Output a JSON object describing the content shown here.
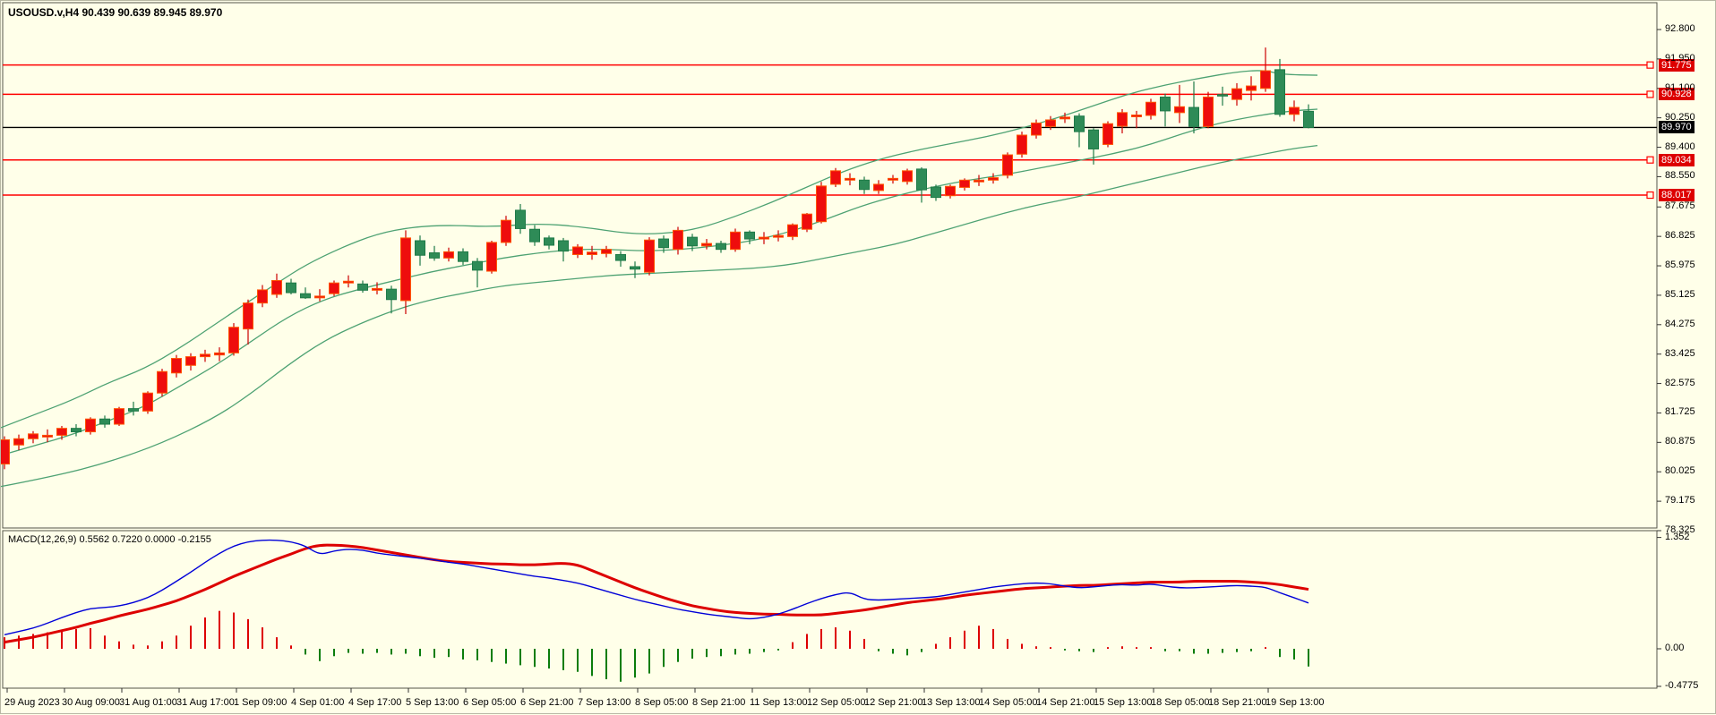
{
  "title": "USOUSD.v,H4  90.439 90.639 89.945 89.970",
  "colors": {
    "background": "#FFFFE9",
    "bull_fill": "#EE0D0D",
    "bull_border": "#FF5500",
    "bull_wick": "#CC0000",
    "bear_fill": "#2E8B57",
    "bear_border": "#1F7A48",
    "bear_wick": "#1F7A48",
    "band": "#4EA273",
    "hline": "#FF0000",
    "current_line": "#000000",
    "macd_line": "#0000D8",
    "signal_line": "#DD0000",
    "hist_pos": "#DD0000",
    "hist_neg": "#0B7D0B",
    "axis": "#333333"
  },
  "chart_data": {
    "type": "candlestick",
    "symbol": "USOUSD.v",
    "timeframe": "H4",
    "last_ohlc": {
      "open": 90.439,
      "high": 90.639,
      "low": 89.945,
      "close": 89.97
    },
    "ylim": [
      78.325,
      92.88
    ],
    "grid": false,
    "price_axis_ticks": [
      "92.800",
      "91.950",
      "91.100",
      "90.250",
      "89.400",
      "88.550",
      "87.675",
      "86.825",
      "85.975",
      "85.125",
      "84.275",
      "83.425",
      "82.575",
      "81.725",
      "80.875",
      "80.025",
      "79.175",
      "78.325"
    ],
    "horizontal_levels": [
      {
        "price": 91.775,
        "label": "91.775"
      },
      {
        "price": 90.928,
        "label": "90.928"
      },
      {
        "price": 89.034,
        "label": "89.034"
      },
      {
        "price": 88.017,
        "label": "88.017"
      }
    ],
    "current_price": {
      "price": 89.97,
      "label": "89.970"
    },
    "bars_per_label": 4,
    "time_labels": [
      "29 Aug 2023",
      "30 Aug 09:00",
      "31 Aug 01:00",
      "31 Aug 17:00",
      "1 Sep 09:00",
      "4 Sep 01:00",
      "4 Sep 17:00",
      "5 Sep 13:00",
      "6 Sep 05:00",
      "6 Sep 21:00",
      "7 Sep 13:00",
      "8 Sep 05:00",
      "8 Sep 21:00",
      "11 Sep 13:00",
      "12 Sep 05:00",
      "12 Sep 21:00",
      "13 Sep 13:00",
      "14 Sep 05:00",
      "14 Sep 21:00",
      "15 Sep 13:00",
      "18 Sep 05:00",
      "18 Sep 21:00",
      "19 Sep 13:00"
    ],
    "candles_ohlc": [
      [
        80.25,
        81.05,
        80.1,
        80.95
      ],
      [
        80.8,
        81.1,
        80.65,
        80.98
      ],
      [
        80.98,
        81.2,
        80.85,
        81.12
      ],
      [
        81.03,
        81.25,
        80.88,
        81.08
      ],
      [
        81.08,
        81.35,
        80.95,
        81.28
      ],
      [
        81.28,
        81.4,
        81.05,
        81.18
      ],
      [
        81.18,
        81.6,
        81.1,
        81.55
      ],
      [
        81.55,
        81.65,
        81.3,
        81.4
      ],
      [
        81.4,
        81.9,
        81.35,
        81.85
      ],
      [
        81.85,
        82.05,
        81.65,
        81.78
      ],
      [
        81.78,
        82.35,
        81.7,
        82.3
      ],
      [
        82.3,
        83.0,
        82.2,
        82.92
      ],
      [
        82.88,
        83.4,
        82.75,
        83.3
      ],
      [
        83.1,
        83.45,
        82.95,
        83.35
      ],
      [
        83.35,
        83.55,
        83.2,
        83.42
      ],
      [
        83.4,
        83.62,
        83.22,
        83.46
      ],
      [
        83.46,
        84.32,
        83.38,
        84.2
      ],
      [
        84.15,
        85.0,
        83.7,
        84.9
      ],
      [
        84.9,
        85.42,
        84.78,
        85.28
      ],
      [
        85.15,
        85.75,
        85.05,
        85.55
      ],
      [
        85.48,
        85.6,
        85.15,
        85.2
      ],
      [
        85.17,
        85.35,
        85.02,
        85.05
      ],
      [
        85.05,
        85.3,
        84.95,
        85.1
      ],
      [
        85.17,
        85.55,
        85.1,
        85.48
      ],
      [
        85.48,
        85.7,
        85.35,
        85.53
      ],
      [
        85.45,
        85.55,
        85.2,
        85.27
      ],
      [
        85.27,
        85.5,
        85.15,
        85.32
      ],
      [
        85.3,
        85.4,
        84.6,
        85.0
      ],
      [
        84.97,
        87.0,
        84.58,
        86.78
      ],
      [
        86.7,
        86.85,
        85.98,
        86.28
      ],
      [
        86.35,
        86.55,
        86.12,
        86.2
      ],
      [
        86.2,
        86.5,
        86.1,
        86.38
      ],
      [
        86.38,
        86.48,
        86.0,
        86.1
      ],
      [
        86.1,
        86.2,
        85.35,
        85.85
      ],
      [
        85.82,
        86.7,
        85.75,
        86.65
      ],
      [
        86.65,
        87.42,
        86.55,
        87.29
      ],
      [
        87.58,
        87.76,
        86.9,
        87.05
      ],
      [
        87.03,
        87.15,
        86.55,
        86.67
      ],
      [
        86.78,
        86.85,
        86.45,
        86.57
      ],
      [
        86.7,
        86.78,
        86.1,
        86.4
      ],
      [
        86.3,
        86.6,
        86.2,
        86.52
      ],
      [
        86.3,
        86.55,
        86.15,
        86.37
      ],
      [
        86.33,
        86.55,
        86.22,
        86.45
      ],
      [
        86.3,
        86.4,
        85.95,
        86.13
      ],
      [
        85.95,
        86.1,
        85.62,
        85.88
      ],
      [
        85.79,
        86.8,
        85.7,
        86.72
      ],
      [
        86.75,
        86.85,
        86.35,
        86.5
      ],
      [
        86.45,
        87.1,
        86.3,
        87.0
      ],
      [
        86.8,
        86.9,
        86.4,
        86.55
      ],
      [
        86.55,
        86.75,
        86.45,
        86.62
      ],
      [
        86.62,
        86.7,
        86.35,
        86.45
      ],
      [
        86.45,
        87.05,
        86.38,
        86.95
      ],
      [
        86.95,
        87.0,
        86.6,
        86.75
      ],
      [
        86.75,
        86.95,
        86.6,
        86.8
      ],
      [
        86.8,
        87.0,
        86.68,
        86.85
      ],
      [
        86.82,
        87.2,
        86.72,
        87.16
      ],
      [
        87.03,
        87.5,
        86.95,
        87.47
      ],
      [
        87.25,
        88.4,
        87.2,
        88.28
      ],
      [
        88.33,
        88.8,
        88.25,
        88.72
      ],
      [
        88.45,
        88.65,
        88.3,
        88.5
      ],
      [
        88.45,
        88.55,
        88.05,
        88.18
      ],
      [
        88.15,
        88.45,
        88.05,
        88.33
      ],
      [
        88.45,
        88.6,
        88.35,
        88.5
      ],
      [
        88.41,
        88.78,
        88.32,
        88.72
      ],
      [
        88.77,
        88.82,
        87.8,
        88.17
      ],
      [
        88.25,
        88.32,
        87.85,
        87.95
      ],
      [
        88.0,
        88.32,
        87.92,
        88.27
      ],
      [
        88.24,
        88.5,
        88.15,
        88.45
      ],
      [
        88.4,
        88.6,
        88.28,
        88.45
      ],
      [
        88.45,
        88.65,
        88.35,
        88.52
      ],
      [
        88.59,
        89.25,
        88.5,
        89.18
      ],
      [
        89.2,
        89.85,
        89.1,
        89.75
      ],
      [
        89.75,
        90.2,
        89.65,
        90.1
      ],
      [
        90.0,
        90.3,
        89.9,
        90.19
      ],
      [
        90.22,
        90.4,
        90.1,
        90.27
      ],
      [
        90.3,
        90.38,
        89.4,
        89.85
      ],
      [
        89.9,
        89.95,
        88.9,
        89.35
      ],
      [
        89.48,
        90.15,
        89.4,
        90.08
      ],
      [
        90.01,
        90.5,
        89.8,
        90.4
      ],
      [
        90.28,
        90.45,
        89.95,
        90.33
      ],
      [
        90.32,
        90.8,
        90.2,
        90.7
      ],
      [
        90.85,
        90.95,
        90.0,
        90.45
      ],
      [
        90.4,
        91.2,
        90.1,
        90.57
      ],
      [
        90.55,
        91.3,
        89.8,
        90.0
      ],
      [
        90.0,
        91.0,
        89.95,
        90.85
      ],
      [
        90.92,
        91.15,
        90.6,
        90.88
      ],
      [
        90.78,
        91.25,
        90.6,
        91.09
      ],
      [
        91.04,
        91.45,
        90.75,
        91.17
      ],
      [
        91.1,
        92.28,
        91.0,
        91.61
      ],
      [
        91.64,
        91.95,
        90.28,
        90.35
      ],
      [
        90.35,
        90.75,
        90.15,
        90.55
      ],
      [
        90.439,
        90.639,
        89.945,
        89.97
      ]
    ],
    "bollinger": {
      "upper": [
        [
          0,
          81.3
        ],
        [
          40,
          81.7
        ],
        [
          80,
          82.1
        ],
        [
          120,
          82.6
        ],
        [
          160,
          83.0
        ],
        [
          200,
          83.6
        ],
        [
          240,
          84.3
        ],
        [
          280,
          85.0
        ],
        [
          310,
          85.5
        ],
        [
          340,
          86.0
        ],
        [
          380,
          86.5
        ],
        [
          420,
          86.9
        ],
        [
          460,
          87.1
        ],
        [
          500,
          87.15
        ],
        [
          550,
          87.1
        ],
        [
          600,
          87.2
        ],
        [
          650,
          87.1
        ],
        [
          700,
          86.9
        ],
        [
          740,
          86.9
        ],
        [
          780,
          87.05
        ],
        [
          820,
          87.4
        ],
        [
          860,
          87.8
        ],
        [
          900,
          88.25
        ],
        [
          940,
          88.7
        ],
        [
          980,
          89.05
        ],
        [
          1020,
          89.3
        ],
        [
          1060,
          89.5
        ],
        [
          1100,
          89.7
        ],
        [
          1140,
          89.95
        ],
        [
          1180,
          90.25
        ],
        [
          1220,
          90.6
        ],
        [
          1260,
          90.95
        ],
        [
          1300,
          91.2
        ],
        [
          1340,
          91.4
        ],
        [
          1380,
          91.58
        ],
        [
          1410,
          91.63
        ],
        [
          1430,
          91.5
        ],
        [
          1470,
          91.48
        ]
      ],
      "middle": [
        [
          0,
          80.5
        ],
        [
          40,
          80.8
        ],
        [
          80,
          81.1
        ],
        [
          120,
          81.5
        ],
        [
          160,
          81.9
        ],
        [
          200,
          82.5
        ],
        [
          240,
          83.1
        ],
        [
          280,
          83.8
        ],
        [
          320,
          84.5
        ],
        [
          360,
          85.0
        ],
        [
          400,
          85.3
        ],
        [
          440,
          85.55
        ],
        [
          480,
          85.8
        ],
        [
          520,
          86.0
        ],
        [
          560,
          86.2
        ],
        [
          600,
          86.35
        ],
        [
          640,
          86.45
        ],
        [
          680,
          86.45
        ],
        [
          720,
          86.4
        ],
        [
          760,
          86.45
        ],
        [
          800,
          86.55
        ],
        [
          840,
          86.7
        ],
        [
          880,
          86.95
        ],
        [
          920,
          87.3
        ],
        [
          960,
          87.7
        ],
        [
          1000,
          88.0
        ],
        [
          1040,
          88.25
        ],
        [
          1080,
          88.45
        ],
        [
          1120,
          88.6
        ],
        [
          1160,
          88.8
        ],
        [
          1200,
          89.0
        ],
        [
          1240,
          89.2
        ],
        [
          1280,
          89.45
        ],
        [
          1320,
          89.8
        ],
        [
          1360,
          90.1
        ],
        [
          1400,
          90.3
        ],
        [
          1440,
          90.45
        ],
        [
          1470,
          90.5
        ]
      ],
      "lower": [
        [
          0,
          79.6
        ],
        [
          60,
          79.9
        ],
        [
          120,
          80.3
        ],
        [
          180,
          80.85
        ],
        [
          240,
          81.6
        ],
        [
          280,
          82.3
        ],
        [
          320,
          83.1
        ],
        [
          360,
          83.8
        ],
        [
          400,
          84.3
        ],
        [
          440,
          84.7
        ],
        [
          480,
          85.0
        ],
        [
          520,
          85.2
        ],
        [
          560,
          85.4
        ],
        [
          600,
          85.5
        ],
        [
          640,
          85.6
        ],
        [
          680,
          85.7
        ],
        [
          720,
          85.75
        ],
        [
          760,
          85.8
        ],
        [
          800,
          85.85
        ],
        [
          840,
          85.9
        ],
        [
          880,
          86.0
        ],
        [
          920,
          86.2
        ],
        [
          960,
          86.4
        ],
        [
          1000,
          86.6
        ],
        [
          1040,
          86.9
        ],
        [
          1080,
          87.2
        ],
        [
          1120,
          87.5
        ],
        [
          1160,
          87.75
        ],
        [
          1200,
          87.95
        ],
        [
          1240,
          88.2
        ],
        [
          1280,
          88.45
        ],
        [
          1320,
          88.7
        ],
        [
          1360,
          88.95
        ],
        [
          1400,
          89.15
        ],
        [
          1440,
          89.35
        ],
        [
          1470,
          89.45
        ]
      ]
    },
    "macd": {
      "label": "MACD(12,26,9) 0.5562 0.7220 0.0000 -0.2155",
      "params": "12,26,9",
      "values_text": [
        "0.5562",
        "0.7220",
        "0.0000",
        "-0.2155"
      ],
      "axis_ticks": [
        "1.352",
        "0.00",
        "-0.4775"
      ],
      "histogram": [
        0.14,
        0.16,
        0.18,
        0.2,
        0.22,
        0.24,
        0.25,
        0.16,
        0.09,
        0.05,
        0.04,
        0.09,
        0.16,
        0.28,
        0.38,
        0.46,
        0.44,
        0.36,
        0.26,
        0.14,
        0.04,
        -0.07,
        -0.15,
        -0.09,
        -0.05,
        -0.06,
        -0.05,
        -0.07,
        -0.06,
        -0.09,
        -0.11,
        -0.1,
        -0.13,
        -0.14,
        -0.16,
        -0.18,
        -0.2,
        -0.22,
        -0.24,
        -0.26,
        -0.28,
        -0.33,
        -0.37,
        -0.4,
        -0.35,
        -0.3,
        -0.22,
        -0.16,
        -0.12,
        -0.1,
        -0.09,
        -0.07,
        -0.06,
        -0.04,
        -0.02,
        0.08,
        0.18,
        0.24,
        0.26,
        0.22,
        0.12,
        -0.03,
        -0.06,
        -0.08,
        -0.04,
        0.06,
        0.14,
        0.22,
        0.28,
        0.24,
        0.12,
        0.06,
        0.03,
        0.02,
        -0.02,
        -0.03,
        -0.04,
        0.02,
        0.03,
        0.02,
        0.02,
        -0.03,
        -0.03,
        -0.06,
        -0.06,
        -0.05,
        -0.04,
        -0.03,
        0.02,
        -0.1,
        -0.13,
        -0.2155
      ],
      "macd_line": [
        0.17,
        0.21,
        0.25,
        0.31,
        0.38,
        0.44,
        0.49,
        0.5,
        0.52,
        0.56,
        0.62,
        0.71,
        0.82,
        0.93,
        1.05,
        1.16,
        1.25,
        1.3,
        1.32,
        1.32,
        1.3,
        1.25,
        1.14,
        1.19,
        1.21,
        1.2,
        1.16,
        1.14,
        1.12,
        1.1,
        1.08,
        1.05,
        1.03,
        1.0,
        0.97,
        0.94,
        0.91,
        0.88,
        0.86,
        0.83,
        0.8,
        0.75,
        0.7,
        0.65,
        0.6,
        0.56,
        0.52,
        0.48,
        0.45,
        0.42,
        0.4,
        0.38,
        0.36,
        0.38,
        0.42,
        0.48,
        0.55,
        0.61,
        0.66,
        0.69,
        0.6,
        0.59,
        0.6,
        0.61,
        0.62,
        0.63,
        0.66,
        0.69,
        0.72,
        0.75,
        0.77,
        0.79,
        0.8,
        0.79,
        0.76,
        0.74,
        0.75,
        0.77,
        0.78,
        0.77,
        0.79,
        0.76,
        0.74,
        0.74,
        0.75,
        0.76,
        0.77,
        0.76,
        0.75,
        0.68,
        0.62,
        0.5562
      ],
      "signal_line": [
        0.08,
        0.11,
        0.14,
        0.18,
        0.22,
        0.26,
        0.31,
        0.35,
        0.4,
        0.44,
        0.48,
        0.53,
        0.58,
        0.65,
        0.72,
        0.8,
        0.88,
        0.95,
        1.02,
        1.09,
        1.15,
        1.22,
        1.26,
        1.26,
        1.25,
        1.23,
        1.2,
        1.17,
        1.14,
        1.11,
        1.08,
        1.06,
        1.05,
        1.04,
        1.03,
        1.03,
        1.02,
        1.02,
        1.03,
        1.04,
        1.02,
        0.95,
        0.88,
        0.81,
        0.74,
        0.68,
        0.62,
        0.57,
        0.52,
        0.49,
        0.46,
        0.44,
        0.43,
        0.42,
        0.42,
        0.41,
        0.41,
        0.41,
        0.43,
        0.45,
        0.47,
        0.5,
        0.53,
        0.56,
        0.58,
        0.6,
        0.62,
        0.65,
        0.67,
        0.69,
        0.71,
        0.73,
        0.74,
        0.75,
        0.76,
        0.77,
        0.77,
        0.78,
        0.79,
        0.8,
        0.81,
        0.81,
        0.81,
        0.82,
        0.82,
        0.82,
        0.82,
        0.81,
        0.8,
        0.78,
        0.75,
        0.722
      ]
    }
  }
}
